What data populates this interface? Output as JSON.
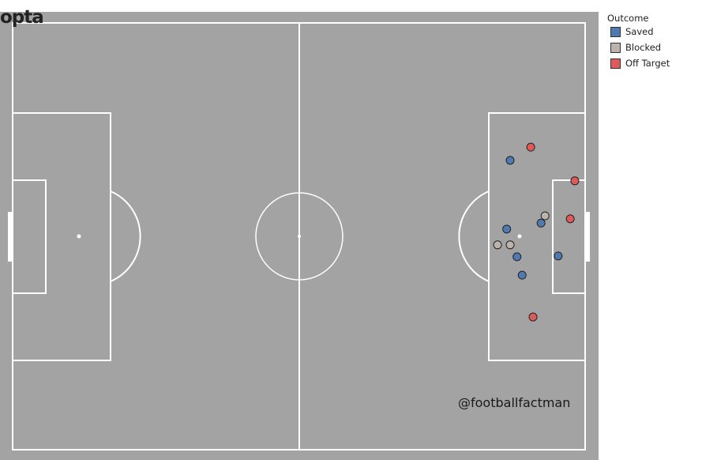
{
  "chart_data": {
    "type": "scatter",
    "pitch": "opta",
    "xlim": [
      0,
      100
    ],
    "ylim": [
      0,
      100
    ],
    "legend": {
      "title": "Outcome",
      "placement": "right"
    },
    "colors": {
      "Saved": "#4f7ab0",
      "Blocked": "#bcb4ac",
      "Off Target": "#e05a5a",
      "pitch": "#a3a3a3",
      "lines": "#ffffff"
    },
    "series": [
      {
        "name": "Saved",
        "points": [
          [
            86.9,
            32.2
          ],
          [
            92.3,
            46.9
          ],
          [
            86.3,
            48.3
          ],
          [
            88.1,
            54.8
          ],
          [
            95.3,
            54.6
          ],
          [
            89.0,
            59.1
          ]
        ]
      },
      {
        "name": "Blocked",
        "points": [
          [
            93.0,
            45.2
          ],
          [
            84.7,
            52.0
          ],
          [
            86.9,
            52.0
          ]
        ]
      },
      {
        "name": "Off Target",
        "points": [
          [
            90.5,
            29.1
          ],
          [
            98.2,
            37.0
          ],
          [
            97.4,
            45.9
          ],
          [
            90.9,
            68.9
          ]
        ]
      }
    ]
  },
  "logo": "opta",
  "watermark": "@footballfactman"
}
